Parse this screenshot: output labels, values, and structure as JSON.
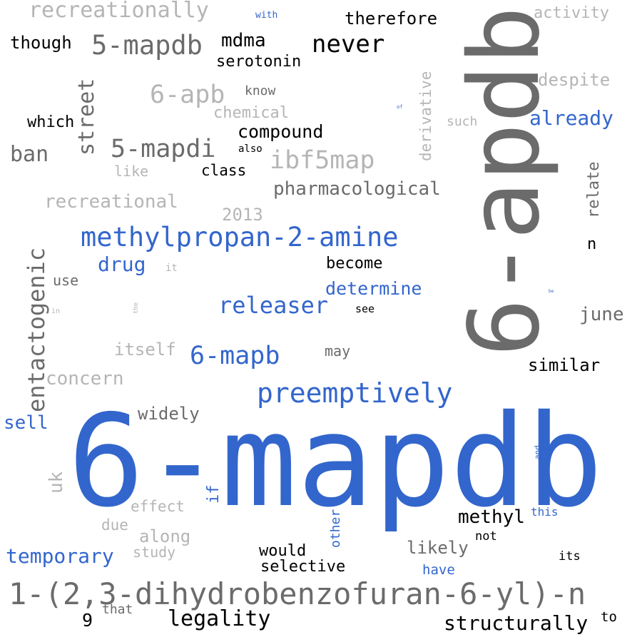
{
  "colors": {
    "black": "#000000",
    "dark_gray": "#6b6b6b",
    "light_gray": "#b5b5b5",
    "blue": "#3366cc"
  },
  "words": [
    {
      "text": "6-mapdb",
      "color": "blue",
      "orientation": "horizontal"
    },
    {
      "text": "6-apdb",
      "color": "dark_gray",
      "orientation": "vertical"
    },
    {
      "text": "1-(2,3-dihydrobenzofuran-6-yl)-n",
      "color": "dark_gray",
      "orientation": "horizontal"
    },
    {
      "text": "methylpropan-2-amine",
      "color": "blue",
      "orientation": "horizontal"
    },
    {
      "text": "preemptively",
      "color": "blue",
      "orientation": "horizontal"
    },
    {
      "text": "5-mapdb",
      "color": "dark_gray",
      "orientation": "horizontal"
    },
    {
      "text": "5-mapdi",
      "color": "dark_gray",
      "orientation": "horizontal"
    },
    {
      "text": "ibf5map",
      "color": "light_gray",
      "orientation": "horizontal"
    },
    {
      "text": "6-mapb",
      "color": "blue",
      "orientation": "horizontal"
    },
    {
      "text": "entactogenic",
      "color": "dark_gray",
      "orientation": "vertical"
    },
    {
      "text": "6-apb",
      "color": "light_gray",
      "orientation": "horizontal"
    },
    {
      "text": "recreationally",
      "color": "light_gray",
      "orientation": "horizontal"
    },
    {
      "text": "never",
      "color": "black",
      "orientation": "horizontal"
    },
    {
      "text": "releaser",
      "color": "blue",
      "orientation": "horizontal"
    },
    {
      "text": "legality",
      "color": "black",
      "orientation": "horizontal"
    },
    {
      "text": "temporary",
      "color": "blue",
      "orientation": "horizontal"
    },
    {
      "text": "structurally",
      "color": "black",
      "orientation": "horizontal"
    },
    {
      "text": "pharmacological",
      "color": "dark_gray",
      "orientation": "horizontal"
    },
    {
      "text": "recreational",
      "color": "light_gray",
      "orientation": "horizontal"
    },
    {
      "text": "mdma",
      "color": "black",
      "orientation": "horizontal"
    },
    {
      "text": "therefore",
      "color": "black",
      "orientation": "horizontal"
    },
    {
      "text": "serotonin",
      "color": "black",
      "orientation": "horizontal"
    },
    {
      "text": "already",
      "color": "blue",
      "orientation": "horizontal"
    },
    {
      "text": "street",
      "color": "dark_gray",
      "orientation": "vertical"
    },
    {
      "text": "compound",
      "color": "black",
      "orientation": "horizontal"
    },
    {
      "text": "ban",
      "color": "dark_gray",
      "orientation": "horizontal"
    },
    {
      "text": "drug",
      "color": "blue",
      "orientation": "horizontal"
    },
    {
      "text": "determine",
      "color": "blue",
      "orientation": "horizontal"
    },
    {
      "text": "despite",
      "color": "light_gray",
      "orientation": "horizontal"
    },
    {
      "text": "activity",
      "color": "light_gray",
      "orientation": "horizontal"
    },
    {
      "text": "derivative",
      "color": "light_gray",
      "orientation": "vertical"
    },
    {
      "text": "relate",
      "color": "dark_gray",
      "orientation": "vertical"
    },
    {
      "text": "june",
      "color": "dark_gray",
      "orientation": "horizontal"
    },
    {
      "text": "similar",
      "color": "black",
      "orientation": "horizontal"
    },
    {
      "text": "methyl",
      "color": "black",
      "orientation": "horizontal"
    },
    {
      "text": "concern",
      "color": "light_gray",
      "orientation": "horizontal"
    },
    {
      "text": "itself",
      "color": "light_gray",
      "orientation": "horizontal"
    },
    {
      "text": "sell",
      "color": "blue",
      "orientation": "horizontal"
    },
    {
      "text": "widely",
      "color": "dark_gray",
      "orientation": "horizontal"
    },
    {
      "text": "uk",
      "color": "light_gray",
      "orientation": "vertical"
    },
    {
      "text": "likely",
      "color": "dark_gray",
      "orientation": "horizontal"
    },
    {
      "text": "selective",
      "color": "black",
      "orientation": "horizontal"
    },
    {
      "text": "would",
      "color": "black",
      "orientation": "horizontal"
    },
    {
      "text": "along",
      "color": "light_gray",
      "orientation": "horizontal"
    },
    {
      "text": "effect",
      "color": "light_gray",
      "orientation": "horizontal"
    },
    {
      "text": "due",
      "color": "light_gray",
      "orientation": "horizontal"
    },
    {
      "text": "study",
      "color": "light_gray",
      "orientation": "horizontal"
    },
    {
      "text": "if",
      "color": "blue",
      "orientation": "vertical"
    },
    {
      "text": "other",
      "color": "blue",
      "orientation": "vertical"
    },
    {
      "text": "have",
      "color": "blue",
      "orientation": "horizontal"
    },
    {
      "text": "this",
      "color": "blue",
      "orientation": "horizontal"
    },
    {
      "text": "not",
      "color": "black",
      "orientation": "horizontal"
    },
    {
      "text": "its",
      "color": "black",
      "orientation": "horizontal"
    },
    {
      "text": "to",
      "color": "black",
      "orientation": "horizontal"
    },
    {
      "text": "9",
      "color": "black",
      "orientation": "horizontal"
    },
    {
      "text": "that",
      "color": "dark_gray",
      "orientation": "horizontal"
    },
    {
      "text": "though",
      "color": "black",
      "orientation": "horizontal"
    },
    {
      "text": "which",
      "color": "black",
      "orientation": "horizontal"
    },
    {
      "text": "class",
      "color": "black",
      "orientation": "horizontal"
    },
    {
      "text": "chemical",
      "color": "light_gray",
      "orientation": "horizontal"
    },
    {
      "text": "know",
      "color": "dark_gray",
      "orientation": "horizontal"
    },
    {
      "text": "also",
      "color": "black",
      "orientation": "horizontal"
    },
    {
      "text": "like",
      "color": "light_gray",
      "orientation": "horizontal"
    },
    {
      "text": "2013",
      "color": "light_gray",
      "orientation": "horizontal"
    },
    {
      "text": "become",
      "color": "black",
      "orientation": "horizontal"
    },
    {
      "text": "see",
      "color": "black",
      "orientation": "horizontal"
    },
    {
      "text": "may",
      "color": "dark_gray",
      "orientation": "horizontal"
    },
    {
      "text": "use",
      "color": "dark_gray",
      "orientation": "horizontal"
    },
    {
      "text": "it",
      "color": "light_gray",
      "orientation": "horizontal"
    },
    {
      "text": "in",
      "color": "light_gray",
      "orientation": "horizontal"
    },
    {
      "text": "the",
      "color": "light_gray",
      "orientation": "vertical"
    },
    {
      "text": "such",
      "color": "light_gray",
      "orientation": "horizontal"
    },
    {
      "text": "with",
      "color": "blue",
      "orientation": "horizontal"
    },
    {
      "text": "of",
      "color": "blue",
      "orientation": "horizontal"
    },
    {
      "text": "n",
      "color": "black",
      "orientation": "horizontal"
    },
    {
      "text": "and",
      "color": "blue",
      "orientation": "vertical"
    },
    {
      "text": "be",
      "color": "blue",
      "orientation": "horizontal"
    }
  ]
}
